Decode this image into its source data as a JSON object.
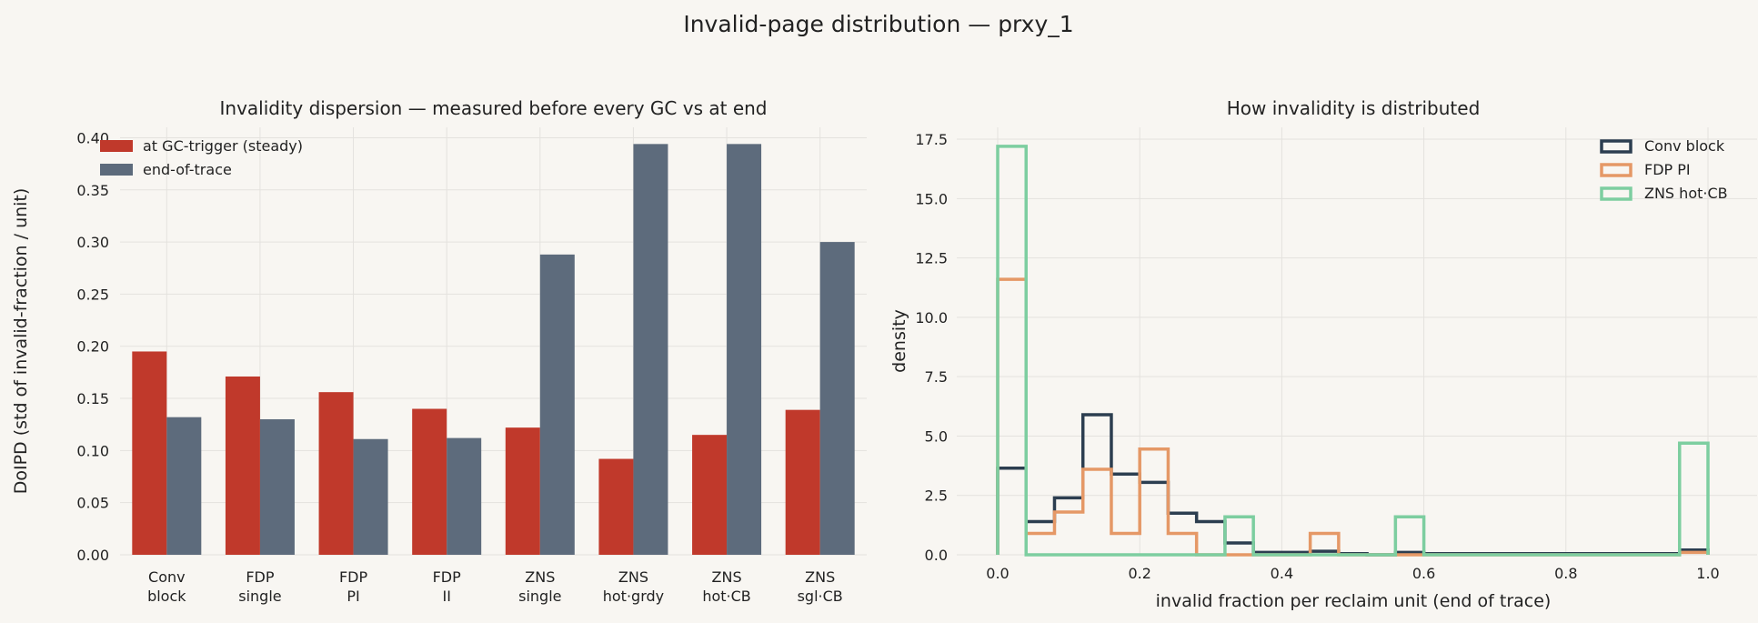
{
  "figure": {
    "title": "Invalid-page distribution — prxy_1"
  },
  "chart_data": [
    {
      "type": "bar",
      "title": "Invalidity dispersion — measured before every GC vs at end",
      "ylabel": "DoIPD  (std of invalid-fraction / unit)",
      "xlabel": "",
      "ylim": [
        0,
        0.41
      ],
      "yticks": [
        "0.00",
        "0.05",
        "0.10",
        "0.15",
        "0.20",
        "0.25",
        "0.30",
        "0.35",
        "0.40"
      ],
      "grid": true,
      "legend_position": "top-left",
      "categories": [
        [
          "Conv",
          "block"
        ],
        [
          "FDP",
          "single"
        ],
        [
          "FDP",
          "PI"
        ],
        [
          "FDP",
          "II"
        ],
        [
          "ZNS",
          "single"
        ],
        [
          "ZNS",
          "hot·grdy"
        ],
        [
          "ZNS",
          "hot·CB"
        ],
        [
          "ZNS",
          "sgl·CB"
        ]
      ],
      "series": [
        {
          "name": "at GC-trigger (steady)",
          "color": "#c0392b",
          "values": [
            0.195,
            0.171,
            0.156,
            0.14,
            0.122,
            0.092,
            0.115,
            0.139
          ]
        },
        {
          "name": "end-of-trace",
          "color": "#5d6b7c",
          "values": [
            0.132,
            0.13,
            0.111,
            0.112,
            0.288,
            0.394,
            0.394,
            0.3
          ]
        }
      ]
    },
    {
      "type": "histogram",
      "title": "How invalidity is distributed",
      "xlabel": "invalid fraction per reclaim unit (end of trace)",
      "ylabel": "density",
      "xlim": [
        -0.04,
        1.04
      ],
      "ylim": [
        0,
        18
      ],
      "xticks": [
        "0.0",
        "0.2",
        "0.4",
        "0.6",
        "0.8",
        "1.0"
      ],
      "yticks": [
        "0.0",
        "2.5",
        "5.0",
        "7.5",
        "10.0",
        "12.5",
        "15.0",
        "17.5"
      ],
      "grid": true,
      "legend_position": "top-right",
      "bin_width": 0.04,
      "series": [
        {
          "name": "Conv block",
          "color": "#2c3e50",
          "values": [
            3.65,
            1.4,
            2.4,
            5.9,
            3.4,
            3.05,
            1.75,
            1.4,
            0.5,
            0.1,
            0.1,
            0.15,
            0.05,
            0,
            0.1,
            0.05,
            0.05,
            0.05,
            0.05,
            0.05,
            0.05,
            0.05,
            0.05,
            0.05,
            0.2
          ]
        },
        {
          "name": "FDP PI",
          "color": "#e59866",
          "values": [
            11.6,
            0.9,
            1.8,
            3.6,
            0.9,
            4.45,
            0.9,
            0,
            0,
            0,
            0,
            0.9,
            0,
            0,
            0,
            0,
            0,
            0,
            0,
            0,
            0,
            0,
            0,
            0,
            0.1
          ]
        },
        {
          "name": "ZNS hot·CB",
          "color": "#7dcea0",
          "values": [
            17.2,
            0,
            0,
            0,
            0,
            0,
            0,
            0,
            1.6,
            0,
            0,
            0,
            0,
            0,
            1.6,
            0,
            0,
            0,
            0,
            0,
            0,
            0,
            0,
            0,
            4.7
          ]
        }
      ]
    }
  ]
}
